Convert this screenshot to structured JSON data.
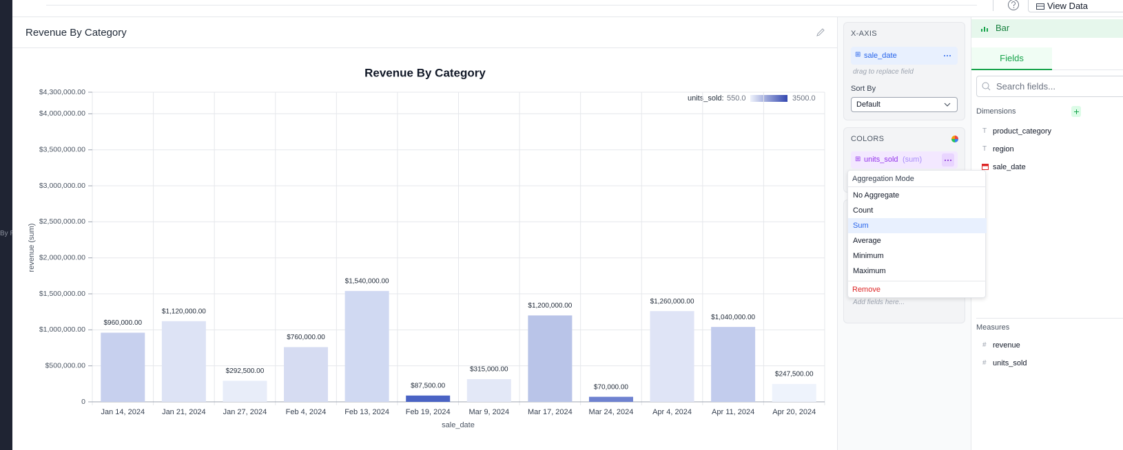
{
  "header": {
    "view_data_button": "View Data"
  },
  "left_rail": {
    "fragment": "By R"
  },
  "panel": {
    "title": "Revenue By Category"
  },
  "chart_data": {
    "type": "bar",
    "title": "Revenue By Category",
    "x_label": "sale_date",
    "y_label": "revenue (sum)",
    "categories": [
      "Jan 14, 2024",
      "Jan 21, 2024",
      "Jan 27, 2024",
      "Feb 4, 2024",
      "Feb 13, 2024",
      "Feb 19, 2024",
      "Mar 9, 2024",
      "Mar 17, 2024",
      "Mar 24, 2024",
      "Apr 4, 2024",
      "Apr 11, 2024",
      "Apr 20, 2024"
    ],
    "values": [
      960000,
      1120000,
      292500,
      760000,
      1540000,
      87500,
      315000,
      1200000,
      70000,
      1260000,
      1040000,
      247500
    ],
    "value_labels": [
      "$960,000.00",
      "$1,120,000.00",
      "$292,500.00",
      "$760,000.00",
      "$1,540,000.00",
      "$87,500.00",
      "$315,000.00",
      "$1,200,000.00",
      "$70,000.00",
      "$1,260,000.00",
      "$1,040,000.00",
      "$247,500.00"
    ],
    "colors": [
      "#c7d0ee",
      "#dde3f5",
      "#e8edf9",
      "#d6dcf2",
      "#d0d9f2",
      "#4a63c4",
      "#e3e8f7",
      "#b9c4e8",
      "#6f82d0",
      "#dfe4f6",
      "#c2cced",
      "#eef3fc"
    ],
    "ylim": [
      0,
      4300000
    ],
    "yticks": [
      0,
      {
        "value": 500000,
        "label": "$500,000.00"
      },
      {
        "value": 1000000,
        "label": "$1,000,000.00"
      },
      {
        "value": 1500000,
        "label": "$1,500,000.00"
      },
      {
        "value": 2000000,
        "label": "$2,000,000.00"
      },
      {
        "value": 2500000,
        "label": "$2,500,000.00"
      },
      {
        "value": 3000000,
        "label": "$3,000,000.00"
      },
      {
        "value": 3500000,
        "label": "$3,500,000.00"
      },
      {
        "value": 4000000,
        "label": "$4,000,000.00"
      },
      {
        "value": 4300000,
        "label": "$4,300,000.00"
      }
    ],
    "grid": true,
    "legend": {
      "title": "units_sold:",
      "min_label": "550.0",
      "max_label": "3500.0",
      "colors": [
        "#eef2fb",
        "#3347b0"
      ],
      "corner": "upper right"
    }
  },
  "config": {
    "x_axis": {
      "title": "X-AXIS",
      "field": "sale_date",
      "hint": "drag to replace field",
      "sort_label": "Sort By",
      "sort_value": "Default"
    },
    "colors": {
      "title": "COLORS",
      "field": "units_sold",
      "aggregation": "(sum)"
    },
    "drop_hint": "Add fields here...",
    "menu": {
      "title": "Aggregation Mode",
      "items": [
        "No Aggregate",
        "Count",
        "Sum",
        "Average",
        "Minimum",
        "Maximum"
      ],
      "selected": 2,
      "remove": "Remove"
    }
  },
  "fields_panel": {
    "chart_type": "Bar",
    "tab": "Fields",
    "search_placeholder": "Search fields...",
    "dimensions_title": "Dimensions",
    "dimensions": [
      {
        "icon": "T",
        "name": "product_category"
      },
      {
        "icon": "T",
        "name": "region"
      },
      {
        "name": "sale_date"
      }
    ],
    "measures_title": "Measures",
    "measures": [
      {
        "icon": "#",
        "name": "revenue"
      },
      {
        "icon": "#",
        "name": "units_sold"
      }
    ]
  }
}
